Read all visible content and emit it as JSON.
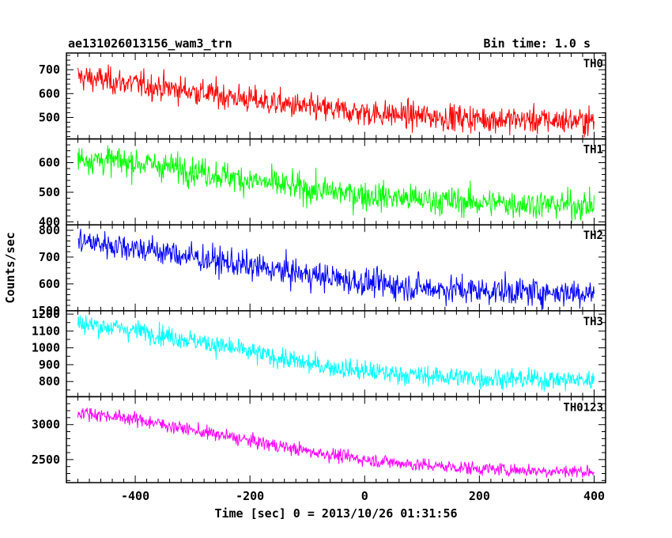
{
  "header": {
    "title": "ae131026013156_wam3_trn",
    "bin_time": "Bin time: 1.0 s"
  },
  "chart_data": {
    "type": "line",
    "title": "ae131026013156_wam3_trn",
    "subtitle": "Bin time: 1.0 s",
    "xlabel": "Time [sec] 0 = 2013/10/26 01:31:56",
    "ylabel": "Counts/sec",
    "xlim": [
      -520,
      420
    ],
    "xticks": [
      -400,
      -200,
      0,
      200,
      400
    ],
    "x_range": [
      -500,
      400
    ],
    "grid": false,
    "panels": [
      {
        "name": "TH0",
        "color": "#ff0000",
        "ylim": [
          410,
          770
        ],
        "yticks": [
          500,
          600,
          700
        ],
        "trend": {
          "x": [
            -500,
            -400,
            -300,
            -200,
            -100,
            0,
            100,
            200,
            300,
            400
          ],
          "y": [
            670,
            640,
            610,
            575,
            540,
            520,
            505,
            495,
            488,
            485
          ]
        },
        "noise_sd": 28
      },
      {
        "name": "TH1",
        "color": "#00ff00",
        "ylim": [
          390,
          680
        ],
        "yticks": [
          400,
          500,
          600
        ],
        "trend": {
          "x": [
            -500,
            -400,
            -300,
            -200,
            -100,
            0,
            100,
            200,
            300,
            400
          ],
          "y": [
            615,
            600,
            575,
            540,
            510,
            490,
            475,
            465,
            460,
            455
          ]
        },
        "noise_sd": 24
      },
      {
        "name": "TH2",
        "color": "#0000ff",
        "ylim": [
          500,
          820
        ],
        "yticks": [
          500,
          600,
          700,
          800
        ],
        "trend": {
          "x": [
            -500,
            -400,
            -300,
            -200,
            -100,
            0,
            100,
            200,
            300,
            400
          ],
          "y": [
            760,
            735,
            700,
            665,
            635,
            605,
            585,
            575,
            570,
            568
          ]
        },
        "noise_sd": 26
      },
      {
        "name": "TH3",
        "color": "#00ffff",
        "ylim": [
          710,
          1220
        ],
        "yticks": [
          800,
          900,
          1000,
          1100,
          1200
        ],
        "trend": {
          "x": [
            -500,
            -400,
            -300,
            -200,
            -100,
            0,
            100,
            200,
            300,
            400
          ],
          "y": [
            1145,
            1105,
            1045,
            975,
            905,
            860,
            835,
            820,
            812,
            808
          ]
        },
        "noise_sd": 30
      },
      {
        "name": "TH0123",
        "color": "#ff00ff",
        "ylim": [
          2170,
          3400
        ],
        "yticks": [
          2500,
          3000
        ],
        "trend": {
          "x": [
            -500,
            -400,
            -300,
            -200,
            -100,
            0,
            100,
            200,
            300,
            400
          ],
          "y": [
            3180,
            3080,
            2920,
            2770,
            2620,
            2500,
            2420,
            2370,
            2340,
            2330
          ]
        },
        "noise_sd": 48
      }
    ]
  }
}
